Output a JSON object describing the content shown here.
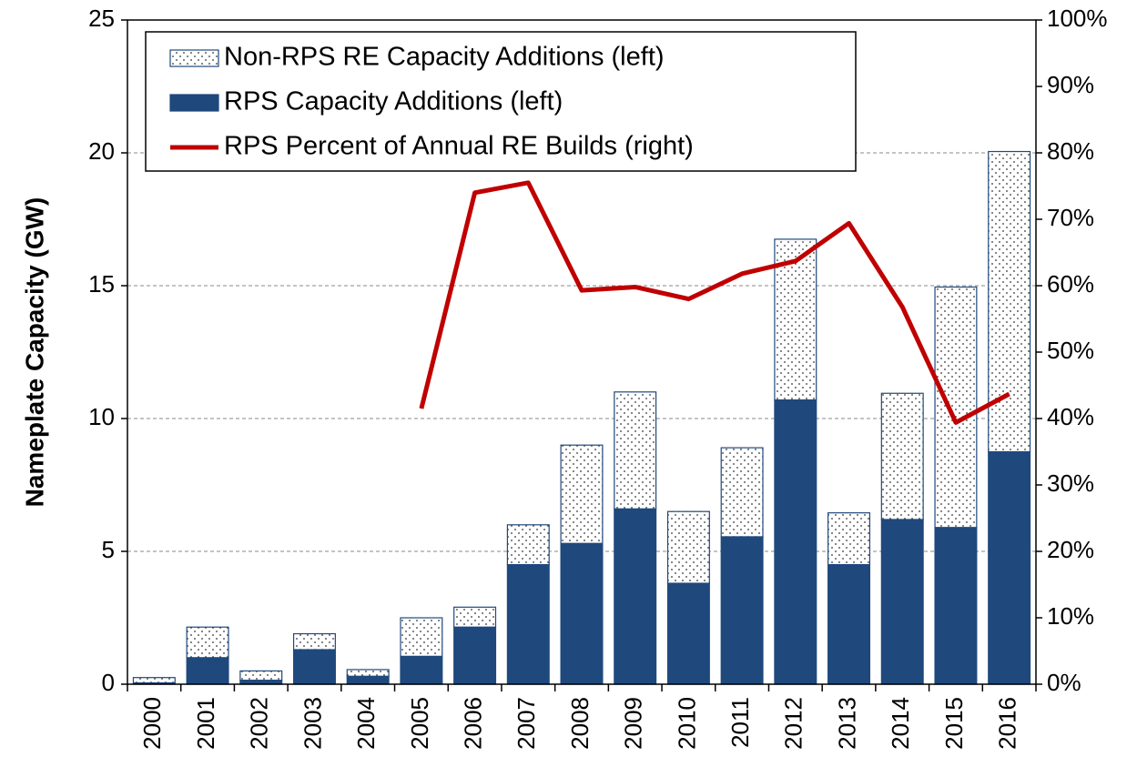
{
  "chart_data": {
    "type": "bar",
    "ylabel": "Nameplate Capacity (GW)",
    "categories": [
      "2000",
      "2001",
      "2002",
      "2003",
      "2004",
      "2005",
      "2006",
      "2007",
      "2008",
      "2009",
      "2010",
      "2011",
      "2012",
      "2013",
      "2014",
      "2015",
      "2016"
    ],
    "series": [
      {
        "name": "Non-RPS RE Capacity Additions (left)",
        "type": "bar",
        "color": "#ffffff",
        "pattern": "dots",
        "values": [
          0.2,
          1.15,
          0.35,
          0.6,
          0.25,
          1.45,
          0.75,
          1.5,
          3.7,
          4.4,
          2.7,
          3.35,
          6.05,
          1.95,
          4.75,
          9.05,
          11.3
        ]
      },
      {
        "name": "RPS Capacity Additions (left)",
        "type": "bar",
        "color": "#1f497d",
        "values": [
          0.05,
          1.0,
          0.15,
          1.3,
          0.3,
          1.05,
          2.15,
          4.5,
          5.3,
          6.6,
          3.8,
          5.55,
          10.7,
          4.5,
          6.2,
          5.9,
          8.75
        ]
      },
      {
        "name": "RPS Percent of Annual RE Builds (right)",
        "type": "line",
        "axis": "y2",
        "color": "#c00000",
        "values": [
          null,
          null,
          null,
          null,
          null,
          41.5,
          74,
          75.5,
          59.3,
          59.8,
          58,
          61.8,
          63.7,
          69.4,
          56.8,
          39.4,
          43.7
        ]
      }
    ],
    "ylim": [
      0,
      25
    ],
    "yticks": [
      0,
      5,
      10,
      15,
      20,
      25
    ],
    "y2lim": [
      0,
      100
    ],
    "y2ticks": [
      {
        "value": 0,
        "label": "0%"
      },
      {
        "value": 10,
        "label": "10%"
      },
      {
        "value": 20,
        "label": "20%"
      },
      {
        "value": 30,
        "label": "30%"
      },
      {
        "value": 40,
        "label": "40%"
      },
      {
        "value": 50,
        "label": "50%"
      },
      {
        "value": 60,
        "label": "60%"
      },
      {
        "value": 70,
        "label": "70%"
      },
      {
        "value": 80,
        "label": "80%"
      },
      {
        "value": 90,
        "label": "90%"
      },
      {
        "value": 100,
        "label": "100%"
      }
    ],
    "grid": true,
    "legend": "upper left"
  }
}
